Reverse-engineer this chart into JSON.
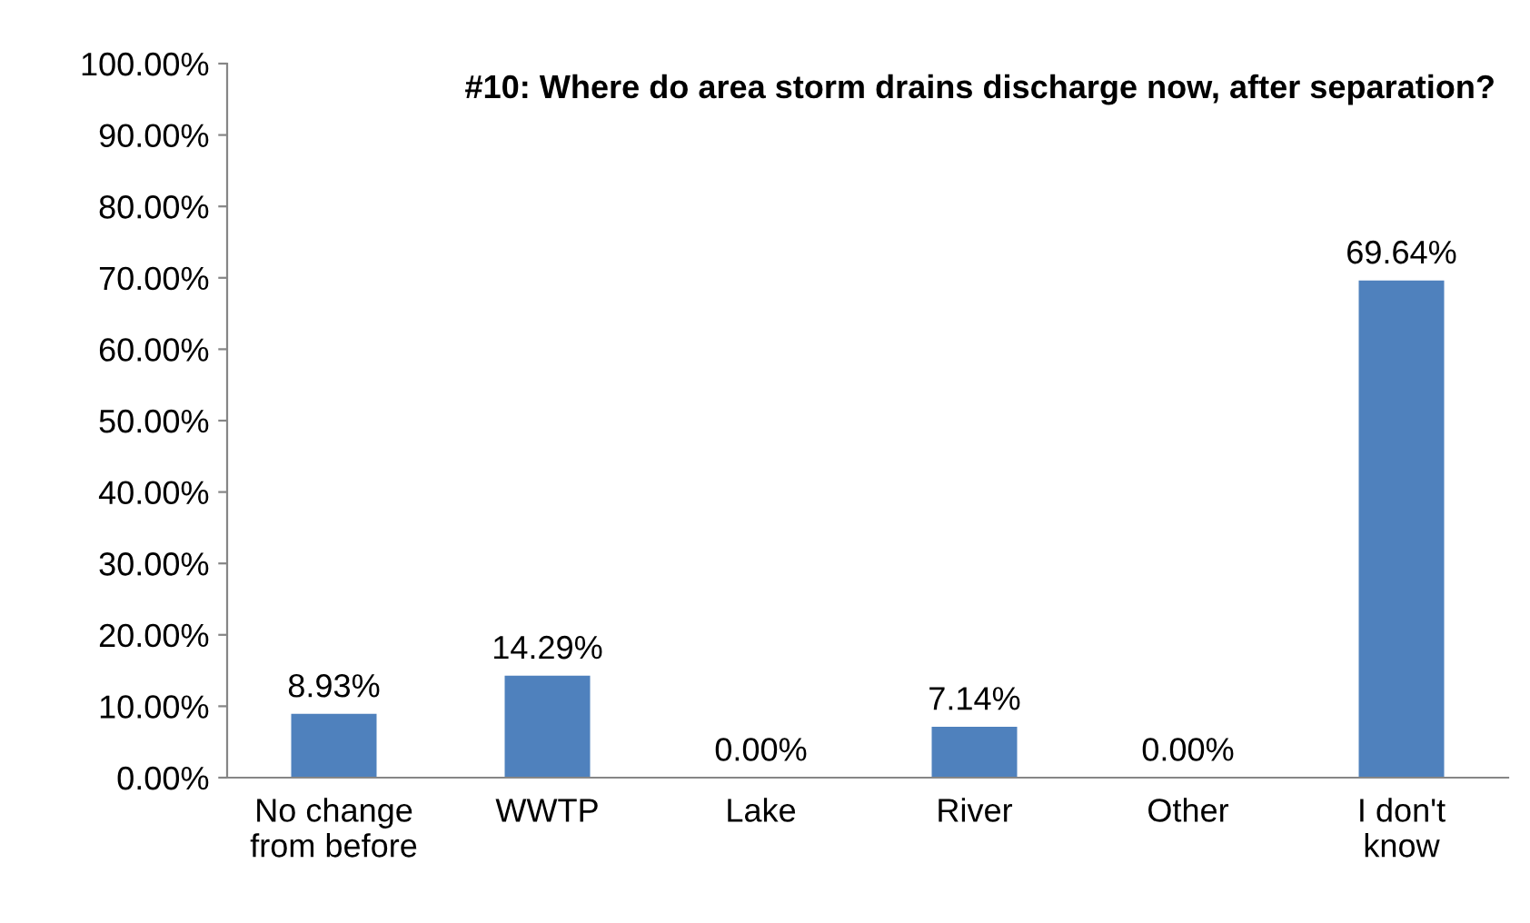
{
  "chart_data": {
    "type": "bar",
    "title": "#10: Where do area storm drains discharge now, after separation?",
    "categories": [
      "No change\nfrom before",
      "WWTP",
      "Lake",
      "River",
      "Other",
      "I don't\nknow"
    ],
    "values": [
      8.93,
      14.29,
      0,
      7.14,
      0,
      69.64
    ],
    "value_labels": [
      "8.93%",
      "14.29%",
      "0.00%",
      "7.14%",
      "0.00%",
      "69.64%"
    ],
    "color": "#4f81bd",
    "ylim": [
      0,
      100
    ],
    "yticks": [
      {
        "value": 0,
        "label": "0.00%"
      },
      {
        "value": 10,
        "label": "10.00%"
      },
      {
        "value": 20,
        "label": "20.00%"
      },
      {
        "value": 30,
        "label": "30.00%"
      },
      {
        "value": 40,
        "label": "40.00%"
      },
      {
        "value": 50,
        "label": "50.00%"
      },
      {
        "value": 60,
        "label": "60.00%"
      },
      {
        "value": 70,
        "label": "70.00%"
      },
      {
        "value": 80,
        "label": "80.00%"
      },
      {
        "value": 90,
        "label": "90.00%"
      },
      {
        "value": 100,
        "label": "100.00%"
      }
    ]
  }
}
